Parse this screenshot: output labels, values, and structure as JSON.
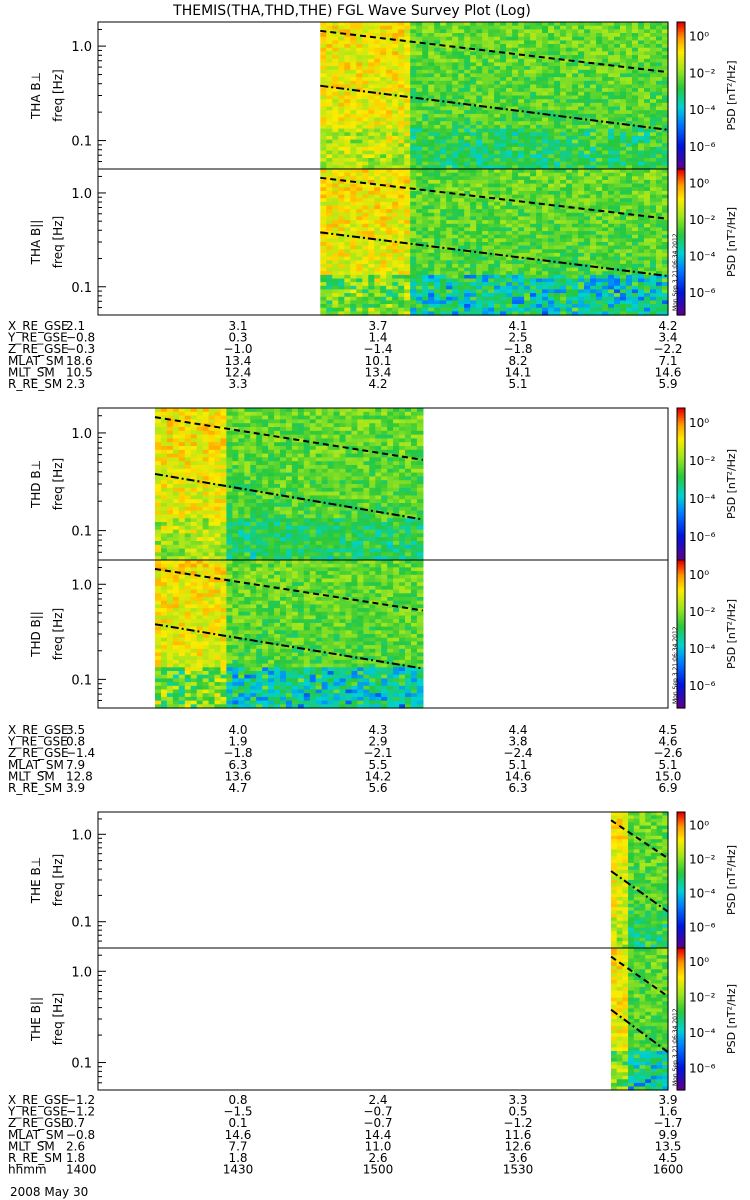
{
  "title": "THEMIS(THA,THD,THE) FGL Wave Survey Plot (Log)",
  "date_label": "2008 May 30",
  "stamp": "Mon Sep  3 21:06:34 2012",
  "colorbar": {
    "label": "PSD [nT²/Hz]",
    "ticks": [
      "10⁰",
      "10⁻²",
      "10⁻⁴",
      "10⁻⁶"
    ]
  },
  "yaxis": {
    "label": "freq [Hz]",
    "ticks": [
      "1.0",
      "0.1"
    ]
  },
  "colors": {
    "high": "#ff0000",
    "mid": "#ffff00",
    "low": "#00cc33",
    "lower": "#0033ff",
    "lowest": "#6600cc"
  },
  "chart_data": [
    {
      "type": "heatmap",
      "probe": "THA",
      "panel_label": "THA B⊥",
      "ylabel": "freq [Hz]",
      "yscale": "log",
      "ylim": [
        0.05,
        1.8
      ],
      "x_range_hhmm": [
        "1400",
        "1600"
      ],
      "data_start_frac": 0.39,
      "data_end_frac": 1.0
    },
    {
      "type": "heatmap",
      "probe": "THA",
      "panel_label": "THA B||",
      "ylabel": "freq [Hz]",
      "yscale": "log",
      "ylim": [
        0.05,
        1.8
      ],
      "x_range_hhmm": [
        "1400",
        "1600"
      ],
      "data_start_frac": 0.39,
      "data_end_frac": 1.0
    },
    {
      "type": "heatmap",
      "probe": "THD",
      "panel_label": "THD B⊥",
      "ylabel": "freq [Hz]",
      "yscale": "log",
      "ylim": [
        0.05,
        1.8
      ],
      "x_range_hhmm": [
        "1400",
        "1600"
      ],
      "data_start_frac": 0.1,
      "data_end_frac": 0.57
    },
    {
      "type": "heatmap",
      "probe": "THD",
      "panel_label": "THD B||",
      "ylabel": "freq [Hz]",
      "yscale": "log",
      "ylim": [
        0.05,
        1.8
      ],
      "x_range_hhmm": [
        "1400",
        "1600"
      ],
      "data_start_frac": 0.1,
      "data_end_frac": 0.57
    },
    {
      "type": "heatmap",
      "probe": "THE",
      "panel_label": "THE B⊥",
      "ylabel": "freq [Hz]",
      "yscale": "log",
      "ylim": [
        0.05,
        1.8
      ],
      "x_range_hhmm": [
        "1400",
        "1600"
      ],
      "data_start_frac": 0.9,
      "data_end_frac": 1.0
    },
    {
      "type": "heatmap",
      "probe": "THE",
      "panel_label": "THE B||",
      "ylabel": "freq [Hz]",
      "yscale": "log",
      "ylim": [
        0.05,
        1.8
      ],
      "x_range_hhmm": [
        "1400",
        "1600"
      ],
      "data_start_frac": 0.9,
      "data_end_frac": 1.0
    }
  ],
  "ephemeris": {
    "THA": [
      {
        "name": "X_RE_GSE",
        "values": [
          "2.1",
          "3.1",
          "3.7",
          "4.1",
          "4.2"
        ]
      },
      {
        "name": "Y_RE_GSE",
        "values": [
          "−0.8",
          "0.3",
          "1.4",
          "2.5",
          "3.4"
        ]
      },
      {
        "name": "Z_RE_GSE",
        "values": [
          "−0.3",
          "−1.0",
          "−1.4",
          "−1.8",
          "−2.2"
        ]
      },
      {
        "name": "MLAT_SM",
        "values": [
          "18.6",
          "13.4",
          "10.1",
          "8.2",
          "7.1"
        ]
      },
      {
        "name": "MLT_SM",
        "values": [
          "10.5",
          "12.4",
          "13.4",
          "14.1",
          "14.6"
        ]
      },
      {
        "name": "R_RE_SM",
        "values": [
          "2.3",
          "3.3",
          "4.2",
          "5.1",
          "5.9"
        ]
      }
    ],
    "THD": [
      {
        "name": "X_RE_GSE",
        "values": [
          "3.5",
          "4.0",
          "4.3",
          "4.4",
          "4.5"
        ]
      },
      {
        "name": "Y_RE_GSE",
        "values": [
          "0.8",
          "1.9",
          "2.9",
          "3.8",
          "4.6"
        ]
      },
      {
        "name": "Z_RE_GSE",
        "values": [
          "−1.4",
          "−1.8",
          "−2.1",
          "−2.4",
          "−2.6"
        ]
      },
      {
        "name": "MLAT_SM",
        "values": [
          "7.9",
          "6.3",
          "5.5",
          "5.1",
          "5.1"
        ]
      },
      {
        "name": "MLT_SM",
        "values": [
          "12.8",
          "13.6",
          "14.2",
          "14.6",
          "15.0"
        ]
      },
      {
        "name": "R_RE_SM",
        "values": [
          "3.9",
          "4.7",
          "5.6",
          "6.3",
          "6.9"
        ]
      }
    ],
    "THE": [
      {
        "name": "X_RE_GSE",
        "values": [
          "−1.2",
          "0.8",
          "2.4",
          "3.3",
          "3.9"
        ]
      },
      {
        "name": "Y_RE_GSE",
        "values": [
          "−1.2",
          "−1.5",
          "−0.7",
          "0.5",
          "1.6"
        ]
      },
      {
        "name": "Z_RE_GSE",
        "values": [
          "0.7",
          "0.1",
          "−0.7",
          "−1.2",
          "−1.7"
        ]
      },
      {
        "name": "MLAT_SM",
        "values": [
          "−0.8",
          "14.6",
          "14.4",
          "11.6",
          "9.9"
        ]
      },
      {
        "name": "MLT_SM",
        "values": [
          "2.6",
          "7.7",
          "11.0",
          "12.6",
          "13.5"
        ]
      },
      {
        "name": "R_RE_SM",
        "values": [
          "1.8",
          "1.8",
          "2.6",
          "3.6",
          "4.5"
        ]
      },
      {
        "name": "hhmm",
        "values": [
          "1400",
          "1430",
          "1500",
          "1530",
          "1600"
        ]
      }
    ]
  }
}
